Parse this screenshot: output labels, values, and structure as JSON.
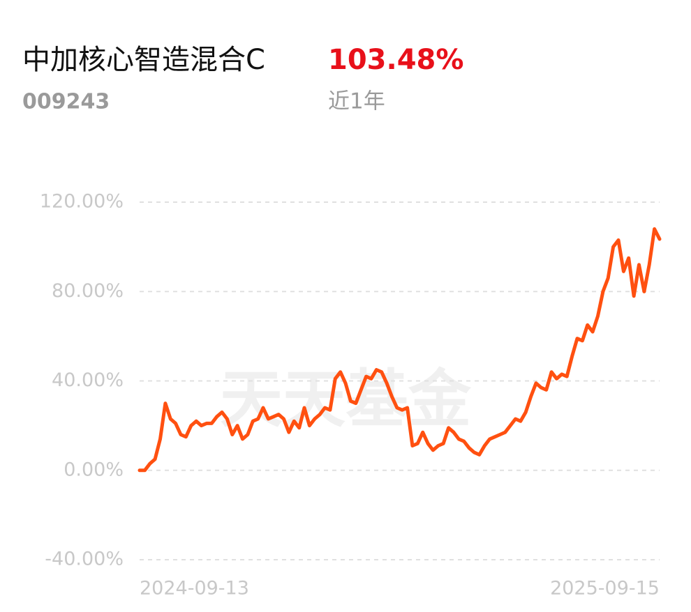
{
  "chart_data": {
    "type": "line",
    "title": "中加核心智造混合C",
    "return_label": "103.48%",
    "code": "009243",
    "period": "近1年",
    "watermark": "天天基金",
    "categories": [
      "2024-09-13",
      null,
      null,
      null,
      null,
      null,
      null,
      null,
      null,
      null,
      null,
      null,
      null,
      null,
      null,
      null,
      null,
      null,
      null,
      null,
      null,
      null,
      null,
      null,
      null,
      null,
      null,
      null,
      null,
      null,
      null,
      null,
      null,
      null,
      null,
      null,
      null,
      null,
      null,
      null,
      null,
      null,
      null,
      null,
      null,
      null,
      null,
      null,
      null,
      null,
      null,
      null,
      null,
      null,
      null,
      null,
      null,
      null,
      null,
      null,
      null,
      null,
      null,
      null,
      null,
      null,
      null,
      null,
      null,
      null,
      null,
      null,
      null,
      null,
      null,
      null,
      null,
      null,
      null,
      null,
      null,
      null,
      null,
      null,
      null,
      null,
      null,
      null,
      null,
      null,
      null,
      null,
      null,
      null,
      null,
      null,
      null,
      null,
      null,
      null,
      null,
      "2025-09-15"
    ],
    "series": [
      {
        "color": "#ff5010",
        "values": [
          0,
          0,
          3,
          5,
          14,
          30,
          23,
          21,
          16,
          15,
          20,
          22,
          20,
          21,
          21,
          24,
          26,
          23,
          16,
          20,
          14,
          16,
          22,
          23,
          28,
          23,
          24,
          25,
          23,
          17,
          22,
          19,
          28,
          20,
          23,
          25,
          28,
          27,
          41,
          44,
          39,
          31,
          30,
          36,
          42,
          41,
          45,
          44,
          39,
          33,
          28,
          27,
          28,
          11,
          12,
          17,
          12,
          9,
          11,
          12,
          19,
          17,
          14,
          13,
          10,
          8,
          7,
          11,
          14,
          15,
          16,
          17,
          20,
          23,
          22,
          26,
          33,
          39,
          37,
          36,
          44,
          41,
          43,
          42,
          51,
          59,
          58,
          65,
          62,
          69,
          80,
          86,
          100,
          103,
          89,
          95,
          78,
          92,
          80,
          92,
          108,
          103.48
        ]
      }
    ],
    "ylim": [
      -40,
      120
    ],
    "yticks": [
      {
        "value": -40,
        "label": "-40.00%"
      },
      {
        "value": 0,
        "label": "0.00%"
      },
      {
        "value": 40,
        "label": "40.00%"
      },
      {
        "value": 80,
        "label": "80.00%"
      },
      {
        "value": 120,
        "label": "120.00%"
      }
    ],
    "grid": true
  }
}
